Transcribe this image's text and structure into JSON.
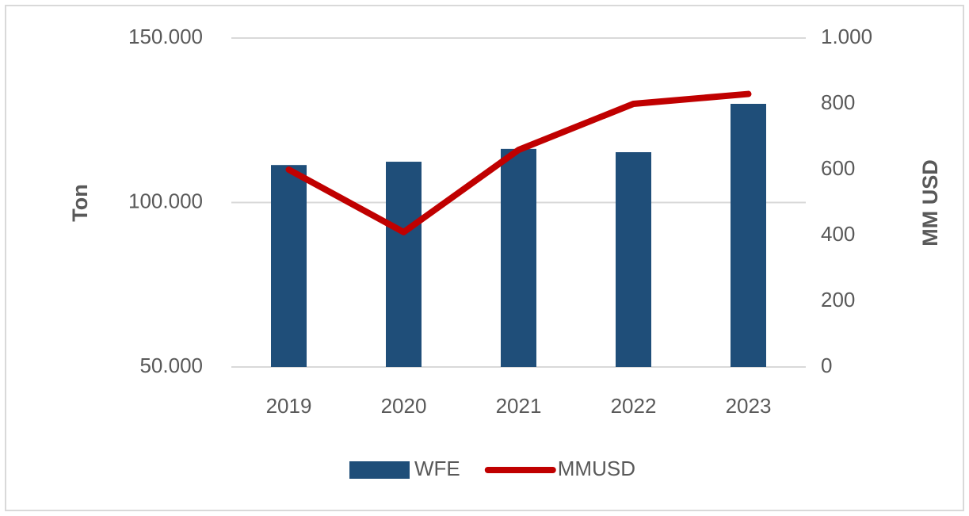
{
  "chart_data": {
    "type": "bar",
    "categories": [
      "2019",
      "2020",
      "2021",
      "2022",
      "2023"
    ],
    "series": [
      {
        "name": "WFE",
        "color": "#1f4e79",
        "values": [
          111400,
          112400,
          116300,
          115300,
          130000
        ]
      },
      {
        "name": "MMUSD",
        "color": "#c00000",
        "type": "line",
        "axis": "y2",
        "values": [
          600,
          410,
          660,
          800,
          830
        ]
      }
    ],
    "ylabel": "Ton",
    "y2label": "MM USD",
    "ylim": [
      50000,
      150000
    ],
    "yticks": [
      {
        "value": 50000,
        "label": "50.000"
      },
      {
        "value": 100000,
        "label": "100.000"
      },
      {
        "value": 150000,
        "label": "150.000"
      }
    ],
    "y2lim": [
      0,
      1000
    ],
    "y2ticks": [
      0,
      200,
      400,
      600,
      800,
      {
        "value": 1000,
        "label": "1.000"
      }
    ],
    "grid": true,
    "legend": "bottom"
  }
}
